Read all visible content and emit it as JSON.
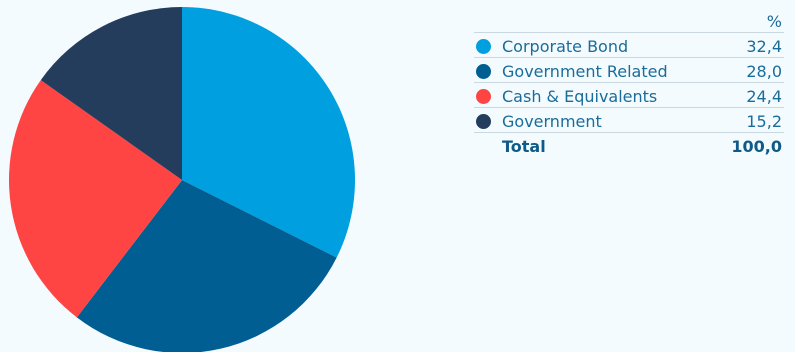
{
  "chart_data": {
    "type": "pie",
    "unit_header": "%",
    "slices": [
      {
        "label": "Corporate Bond",
        "value": 32.4,
        "display": "32,4",
        "color": "#009fe0"
      },
      {
        "label": "Government Related",
        "value": 28.0,
        "display": "28,0",
        "color": "#005e93"
      },
      {
        "label": "Cash & Equivalents",
        "value": 24.4,
        "display": "24,4",
        "color": "#ff4444"
      },
      {
        "label": "Government",
        "value": 15.2,
        "display": "15,2",
        "color": "#253d5c"
      }
    ],
    "total": {
      "label": "Total",
      "value": 100.0,
      "display": "100,0"
    }
  }
}
